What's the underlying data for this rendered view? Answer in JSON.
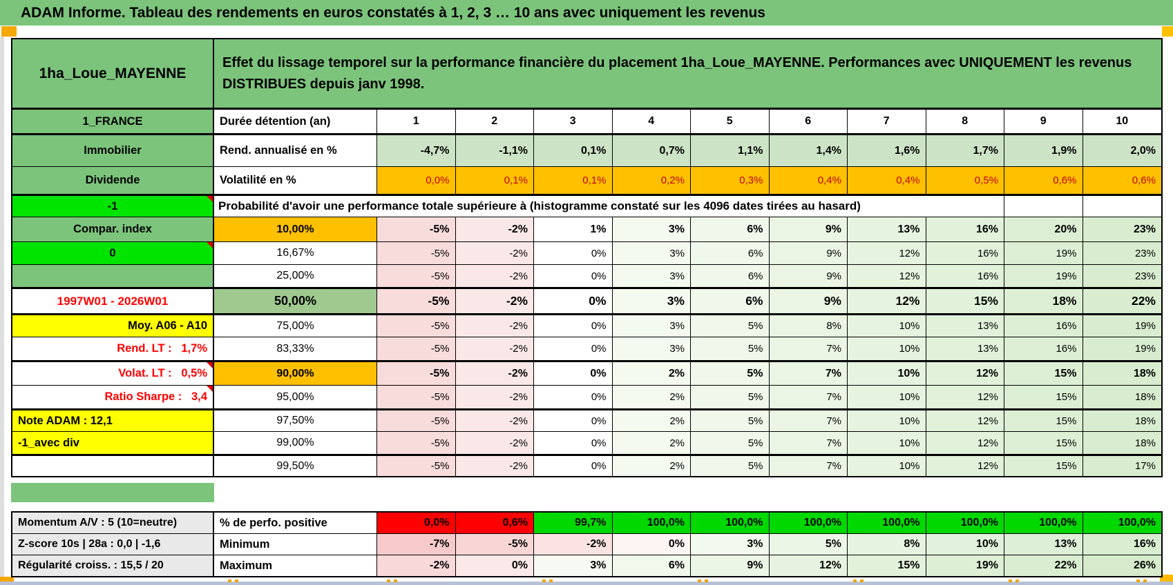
{
  "banner": {
    "title": "ADAM Informe. Tableau des rendements en euros constatés à 1, 2, 3 … 10 ans avec uniquement les revenus"
  },
  "palette": {
    "band_green": "#7cc47c",
    "bright_green": "#00e400",
    "orange": "#ffc000",
    "yellow": "#ffff00",
    "red": "#fe0000",
    "momentum_green": "#00d800",
    "tints": [
      "#f8dcdc",
      "#fae8e8",
      "#ffffff",
      "#f4faf0",
      "#eff8ea",
      "#eaf5e4",
      "#e6f3df",
      "#e1f1da",
      "#dcefd4",
      "#d8edcf"
    ]
  },
  "table": {
    "rows": [
      {
        "id": "title",
        "type": "header",
        "left": "1ha_Loue_MAYENNE",
        "leftStyle": "green",
        "description": "Effet du lissage temporel sur la performance financière du placement 1ha_Loue_MAYENNE. Performances avec UNIQUEMENT les revenus DISTRIBUES depuis janv 1998."
      },
      {
        "id": "duree",
        "left": "1_FRANCE",
        "leftStyle": "green",
        "col2": "Durée détention (an)",
        "col2Style": "label",
        "values": [
          "1",
          "2",
          "3",
          "4",
          "5",
          "6",
          "7",
          "8",
          "9",
          "10"
        ],
        "bold": true,
        "align": "center",
        "cellBg": "#ffffff"
      },
      {
        "id": "rend",
        "left": "Immobilier",
        "leftStyle": "green",
        "col2": "Rend. annualisé en %",
        "col2Style": "label",
        "values": [
          "-4,7%",
          "-1,1%",
          "0,1%",
          "0,7%",
          "1,1%",
          "1,4%",
          "1,6%",
          "1,7%",
          "1,9%",
          "2,0%"
        ],
        "bold": true,
        "cellBg": "#cde3c6"
      },
      {
        "id": "volat",
        "left": "Dividende",
        "leftStyle": "green",
        "col2": "Volatilité en %",
        "col2Style": "label",
        "values": [
          "0,0%",
          "0,1%",
          "0,1%",
          "0,2%",
          "0,3%",
          "0,4%",
          "0,4%",
          "0,5%",
          "0,6%",
          "0,6%"
        ],
        "cellBg": "#ffc000",
        "cellColor": "#c00000"
      },
      {
        "id": "proba",
        "type": "span-row",
        "left": "-1",
        "leftStyle": "bright",
        "note": true,
        "text": "Probabilité d'avoir une performance totale supérieure à (histogramme constaté sur les 4096 dates tirées au hasard)"
      },
      {
        "id": "p10",
        "left": "Compar. index",
        "leftStyle": "green",
        "col2": "10,00%",
        "col2Style": "orange",
        "values": [
          "-5%",
          "-2%",
          "1%",
          "3%",
          "6%",
          "9%",
          "13%",
          "16%",
          "20%",
          "23%"
        ],
        "bold": true,
        "tinted": true
      },
      {
        "id": "p16",
        "left": "0",
        "leftStyle": "bright",
        "note": true,
        "col2": "16,67%",
        "values": [
          "-5%",
          "-2%",
          "0%",
          "3%",
          "6%",
          "9%",
          "12%",
          "16%",
          "19%",
          "23%"
        ],
        "tinted": true
      },
      {
        "id": "p25",
        "left": "",
        "leftStyle": "green",
        "col2": "25,00%",
        "values": [
          "-5%",
          "-2%",
          "0%",
          "3%",
          "6%",
          "9%",
          "12%",
          "16%",
          "19%",
          "23%"
        ],
        "tinted": true
      },
      {
        "id": "p50",
        "left": "1997W01 - 2026W01",
        "leftStyle": "redC",
        "col2": "50,00%",
        "col2Style": "green50",
        "values": [
          "-5%",
          "-2%",
          "0%",
          "3%",
          "6%",
          "9%",
          "12%",
          "15%",
          "18%",
          "22%"
        ],
        "bold": true,
        "big": true,
        "tinted": true
      },
      {
        "id": "p75",
        "left": "Moy. A06 - A10",
        "leftStyle": "yellowR",
        "col2": "75,00%",
        "values": [
          "-5%",
          "-2%",
          "0%",
          "3%",
          "5%",
          "8%",
          "10%",
          "13%",
          "16%",
          "19%"
        ],
        "tinted": true
      },
      {
        "id": "p83",
        "left": "Rend. LT :   1,7%",
        "leftStyle": "redR",
        "col2": "83,33%",
        "values": [
          "-5%",
          "-2%",
          "0%",
          "3%",
          "5%",
          "7%",
          "10%",
          "13%",
          "16%",
          "19%"
        ],
        "tinted": true
      },
      {
        "id": "p90",
        "left": "Volat. LT :   0,5%",
        "leftStyle": "redR",
        "note": true,
        "col2": "90,00%",
        "col2Style": "orange",
        "values": [
          "-5%",
          "-2%",
          "0%",
          "2%",
          "5%",
          "7%",
          "10%",
          "12%",
          "15%",
          "18%"
        ],
        "bold": true,
        "tinted": true
      },
      {
        "id": "p95",
        "left": "Ratio Sharpe :   3,4",
        "leftStyle": "redR",
        "note": true,
        "col2": "95,00%",
        "values": [
          "-5%",
          "-2%",
          "0%",
          "2%",
          "5%",
          "7%",
          "10%",
          "12%",
          "15%",
          "18%"
        ],
        "tinted": true
      },
      {
        "id": "p97",
        "left": "Note ADAM : 12,1",
        "leftStyle": "yellowL",
        "col2": "97,50%",
        "values": [
          "-5%",
          "-2%",
          "0%",
          "2%",
          "5%",
          "7%",
          "10%",
          "12%",
          "15%",
          "18%"
        ],
        "tinted": true
      },
      {
        "id": "p99",
        "left": "-1_avec div",
        "leftStyle": "yellowL",
        "col2": "99,00%",
        "values": [
          "-5%",
          "-2%",
          "0%",
          "2%",
          "5%",
          "7%",
          "10%",
          "12%",
          "15%",
          "18%"
        ],
        "tinted": true
      },
      {
        "id": "p995",
        "left": "",
        "leftStyle": "plain",
        "col2": "99,50%",
        "values": [
          "-5%",
          "-2%",
          "0%",
          "2%",
          "5%",
          "7%",
          "10%",
          "12%",
          "15%",
          "17%"
        ],
        "tinted": true
      },
      {
        "id": "momentum",
        "left": "Momentum A/V : 5 (10=neutre)",
        "leftStyle": "gray",
        "col2": "% de perfo. positive",
        "col2Style": "label",
        "values": [
          "0,0%",
          "0,6%",
          "99,7%",
          "100,0%",
          "100,0%",
          "100,0%",
          "100,0%",
          "100,0%",
          "100,0%",
          "100,0%"
        ],
        "bold": true,
        "bgs": [
          "#fe0000",
          "#fe0000",
          "#00d800",
          "#00d800",
          "#00d800",
          "#00d800",
          "#00d800",
          "#00d800",
          "#00d800",
          "#00d800"
        ]
      },
      {
        "id": "minimum",
        "left": "Z-score 10s | 28a : 0,0 | -1,6",
        "leftStyle": "gray",
        "col2": "Minimum",
        "col2Style": "label",
        "values": [
          "-7%",
          "-5%",
          "-2%",
          "0%",
          "3%",
          "5%",
          "8%",
          "10%",
          "13%",
          "16%"
        ],
        "bold": true,
        "bgs": [
          "#f6caca",
          "#f8d6d6",
          "#fbe3e3",
          "#fdf4f4",
          "#f2f9ee",
          "#ecf6e7",
          "#e7f3e1",
          "#e2f1db",
          "#ddefd6",
          "#d9edd1"
        ]
      },
      {
        "id": "maximum",
        "left": "Régularité croiss. : 15,5 / 20",
        "leftStyle": "gray",
        "col2": "Maximum",
        "col2Style": "label",
        "values": [
          "-2%",
          "0%",
          "3%",
          "6%",
          "9%",
          "12%",
          "15%",
          "19%",
          "22%",
          "26%"
        ],
        "bold": true,
        "bgs": [
          "#f8d8d8",
          "#fbe8e8",
          "#f6faf2",
          "#f1f8ec",
          "#ecf6e6",
          "#e7f3e0",
          "#e2f1da",
          "#ddefd5",
          "#d9edd0",
          "#d5ebcb"
        ]
      }
    ]
  }
}
